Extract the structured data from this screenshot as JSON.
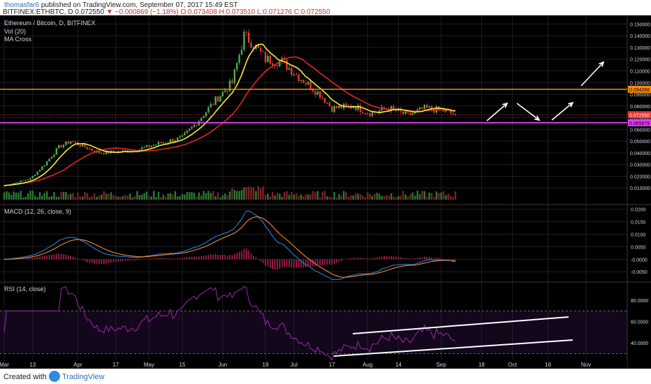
{
  "header": {
    "username": "thomasfar6",
    "published_text": "published on TradingView.com, September 07, 2017 15:49 EST",
    "symbol": "BITFINEX:ETHBTC, D",
    "last": "0.072550",
    "change": "▼ −0.000869 (−1.18%)",
    "ohlc": "O:0.073408 H:0.073510 L:0.071276 C:0.072550"
  },
  "legend": {
    "title": "Ethereum / Bitcoin, D, BITFINEX",
    "vol": "Vol (20)",
    "ma": "MA Cross",
    "macd": "MACD (12, 26, close, 9)",
    "rsi": "RSI (14, close)"
  },
  "colors": {
    "background": "#000000",
    "up": "#4caf50",
    "down": "#e53935",
    "ma_fast": "#f5ec3a",
    "ma_slow": "#e0252a",
    "orange_line": "#ff8c00",
    "magenta_line": "#e040fb",
    "macd": "#2d7fd8",
    "signal": "#f08a3c",
    "rsi": "#9c27b0",
    "annotation": "#ffffff"
  },
  "chart_data": [
    {
      "type": "candlestick",
      "ylim": [
        0,
        0.155
      ],
      "yticks": [
        "0.150000",
        "0.140000",
        "0.130000",
        "0.120000",
        "0.110000",
        "0.100000",
        "0.090000",
        "0.080000",
        "0.070000",
        "0.060000",
        "0.050000",
        "0.040000",
        "0.030000",
        "0.020000",
        "0.010000"
      ],
      "x_labels": [
        "Mar",
        "13",
        "Apr",
        "17",
        "May",
        "15",
        "Jun",
        "19",
        "Jul",
        "17",
        "Aug",
        "14",
        "Sep",
        "18",
        "Oct",
        "16",
        "Nov"
      ],
      "date_start": "2017-03-01",
      "close_estimates": [
        {
          "date": "2017-03-01",
          "value": 0.012
        },
        {
          "date": "2017-03-12",
          "value": 0.018
        },
        {
          "date": "2017-03-18",
          "value": 0.03
        },
        {
          "date": "2017-03-24",
          "value": 0.045
        },
        {
          "date": "2017-03-29",
          "value": 0.05
        },
        {
          "date": "2017-04-10",
          "value": 0.04
        },
        {
          "date": "2017-04-25",
          "value": 0.042
        },
        {
          "date": "2017-05-05",
          "value": 0.048
        },
        {
          "date": "2017-05-15",
          "value": 0.053
        },
        {
          "date": "2017-05-22",
          "value": 0.068
        },
        {
          "date": "2017-05-29",
          "value": 0.085
        },
        {
          "date": "2017-06-05",
          "value": 0.1
        },
        {
          "date": "2017-06-10",
          "value": 0.14
        },
        {
          "date": "2017-06-13",
          "value": 0.135
        },
        {
          "date": "2017-06-19",
          "value": 0.12
        },
        {
          "date": "2017-06-26",
          "value": 0.118
        },
        {
          "date": "2017-07-03",
          "value": 0.105
        },
        {
          "date": "2017-07-12",
          "value": 0.09
        },
        {
          "date": "2017-07-17",
          "value": 0.078
        },
        {
          "date": "2017-07-26",
          "value": 0.08
        },
        {
          "date": "2017-08-02",
          "value": 0.074
        },
        {
          "date": "2017-08-10",
          "value": 0.078
        },
        {
          "date": "2017-08-18",
          "value": 0.072
        },
        {
          "date": "2017-08-25",
          "value": 0.078
        },
        {
          "date": "2017-09-02",
          "value": 0.076
        },
        {
          "date": "2017-09-07",
          "value": 0.0726
        }
      ],
      "horizontal_lines": [
        {
          "name": "resistance",
          "value": 0.094268,
          "label": "0.094268",
          "color": "#ff8c00"
        },
        {
          "name": "support",
          "value": 0.065679,
          "label": "0.065679",
          "color": "#e040fb"
        }
      ],
      "last_price_label": "0.072550",
      "annotations": "white arrows projecting up-down-up-up pattern after Sep"
    },
    {
      "type": "line",
      "name": "MACD",
      "ylim": [
        -0.008,
        0.021
      ],
      "yticks": [
        "0.0200",
        "0.0150",
        "0.0100",
        "0.0050",
        "-0.0000",
        "-0.0050"
      ]
    },
    {
      "type": "line",
      "name": "RSI",
      "ylim": [
        25,
        95
      ],
      "yticks": [
        "80.0000",
        "60.0000",
        "40.0000"
      ],
      "bands": [
        70,
        30
      ]
    }
  ]
}
